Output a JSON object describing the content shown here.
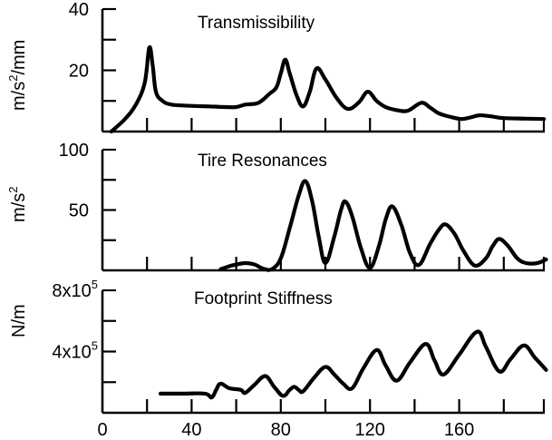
{
  "chart_data": [
    {
      "type": "line",
      "title": "Transmissibility",
      "ylabel": "m/s²/mm",
      "ylabel_base": "m/s",
      "ylabel_sup": "2",
      "ylabel_tail": "/mm",
      "xlabel": "",
      "xlim": [
        0,
        198
      ],
      "ylim": [
        0,
        40
      ],
      "yticks": [
        0,
        10,
        20,
        30,
        40
      ],
      "ytick_labels": [
        {
          "value": 40,
          "label": "40"
        },
        {
          "value": 20,
          "label": "20"
        }
      ],
      "grid": false,
      "series": [
        {
          "name": "Transmissibility",
          "x": [
            4,
            10,
            15,
            19,
            21,
            22.5,
            24,
            27,
            31,
            40,
            48,
            55,
            60,
            64,
            70,
            75,
            78,
            80,
            82,
            84,
            87,
            90,
            93,
            96,
            100,
            105,
            110,
            115,
            119,
            123,
            127,
            132,
            137,
            143,
            147,
            151,
            156,
            161,
            165,
            169,
            174,
            180,
            190,
            198
          ],
          "y": [
            0,
            4,
            8.8,
            16,
            27.4,
            22,
            13,
            10,
            8.8,
            8.4,
            8.2,
            8.0,
            8.0,
            8.8,
            9.4,
            12.4,
            14.4,
            19,
            23.5,
            19,
            12,
            8.2,
            13,
            20.6,
            17,
            11,
            7.4,
            9.5,
            13,
            10,
            8,
            7,
            6.8,
            9.4,
            7.8,
            5.9,
            4.8,
            4.1,
            4.6,
            5.3,
            5.0,
            4.4,
            4.2,
            4.1
          ]
        }
      ]
    },
    {
      "type": "line",
      "title": "Tire Resonances",
      "ylabel": "m/s²",
      "ylabel_base": "m/s",
      "ylabel_sup": "2",
      "xlabel": "",
      "xlim": [
        0,
        198
      ],
      "ylim": [
        0,
        100
      ],
      "yticks": [
        0,
        25,
        50,
        75,
        100
      ],
      "ytick_labels": [
        {
          "value": 100,
          "label": "100"
        },
        {
          "value": 50,
          "label": "50"
        }
      ],
      "grid": false,
      "series": [
        {
          "name": "Tire Resonances",
          "x": [
            53,
            58,
            64,
            68,
            72,
            76,
            80,
            84,
            88,
            91,
            94,
            97,
            100,
            104,
            107,
            109,
            112,
            116,
            120,
            124,
            127,
            130,
            134,
            138,
            142,
            147,
            151,
            154,
            158,
            162,
            167,
            172,
            175,
            178,
            182,
            186,
            190,
            195,
            199
          ],
          "y": [
            1,
            4,
            6,
            5,
            1.5,
            1,
            10,
            35,
            62,
            74,
            58,
            28,
            6,
            28,
            50,
            57,
            45,
            18,
            2,
            20,
            42,
            53,
            38,
            14,
            4.5,
            22,
            34,
            38,
            30,
            16,
            4,
            10,
            20,
            26,
            20,
            10,
            6,
            6,
            9
          ]
        }
      ]
    },
    {
      "type": "line",
      "title": "Footprint Stiffness",
      "ylabel": "N/m",
      "xlabel": "",
      "xlim": [
        0,
        198
      ],
      "ylim": [
        0,
        800000
      ],
      "yticks": [
        0,
        200000,
        400000,
        600000,
        800000
      ],
      "ytick_labels": [
        {
          "value": 800000,
          "label_base": "8x10",
          "label_sup": "5"
        },
        {
          "value": 400000,
          "label_base": "4x10",
          "label_sup": "5"
        }
      ],
      "grid": false,
      "series": [
        {
          "name": "Footprint Stiffness",
          "x": [
            26,
            35,
            46,
            49,
            51,
            53,
            57,
            62,
            64,
            68,
            73,
            77,
            81,
            84,
            86,
            88,
            90,
            95,
            100,
            104,
            108,
            112,
            117,
            123,
            127,
            132,
            138,
            145,
            149,
            153,
            160,
            168,
            172,
            178,
            183,
            189,
            194,
            199
          ],
          "y": [
            125000,
            125000,
            125000,
            100000,
            150000,
            190000,
            160000,
            150000,
            130000,
            180000,
            240000,
            170000,
            110000,
            150000,
            170000,
            150000,
            140000,
            230000,
            300000,
            250000,
            190000,
            160000,
            290000,
            410000,
            310000,
            210000,
            330000,
            450000,
            340000,
            250000,
            380000,
            530000,
            430000,
            270000,
            350000,
            440000,
            360000,
            280000
          ]
        }
      ]
    }
  ],
  "x_axis": {
    "ticks": [
      0,
      20,
      40,
      60,
      80,
      100,
      120,
      140,
      160,
      180,
      198
    ],
    "labels": [
      {
        "value": 0,
        "label": "0"
      },
      {
        "value": 40,
        "label": "40"
      },
      {
        "value": 80,
        "label": "80"
      },
      {
        "value": 120,
        "label": "120"
      },
      {
        "value": 160,
        "label": "160"
      }
    ]
  }
}
